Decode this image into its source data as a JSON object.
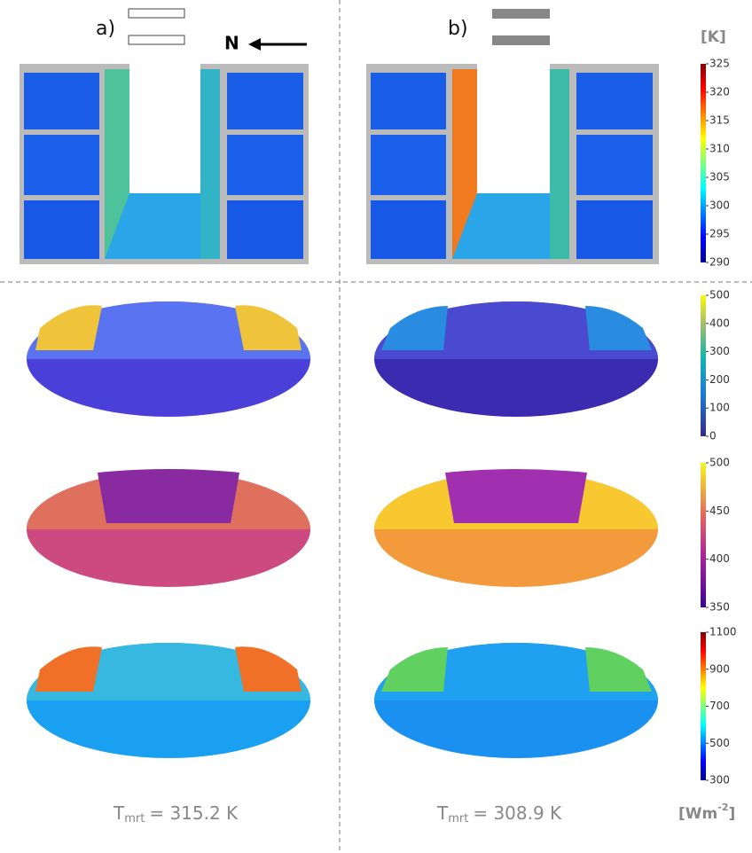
{
  "panels": [
    {
      "label": "a)"
    },
    {
      "label": "b)"
    }
  ],
  "north": "N",
  "unit_temperature": "[K]",
  "colorbars": [
    {
      "lim": [
        290,
        325
      ],
      "ticks": [
        290,
        295,
        300,
        305,
        310,
        315,
        320,
        325
      ]
    },
    {
      "lim": [
        0,
        500
      ],
      "ticks": [
        0,
        100,
        200,
        300,
        400,
        500
      ]
    },
    {
      "lim": [
        350,
        500
      ],
      "ticks": [
        350,
        400,
        450,
        500
      ]
    },
    {
      "lim": [
        300,
        1100
      ],
      "ticks": [
        300,
        500,
        700,
        900,
        1100
      ]
    }
  ],
  "tmrt": [
    {
      "symbol": "T",
      "subscript": "mrt",
      "rest": "= 315.2 K"
    },
    {
      "symbol": "T",
      "subscript": "mrt",
      "rest": "= 308.9 K"
    }
  ],
  "unit_flux": {
    "base": "[Wm",
    "sup": "-2",
    "end": "]"
  }
}
